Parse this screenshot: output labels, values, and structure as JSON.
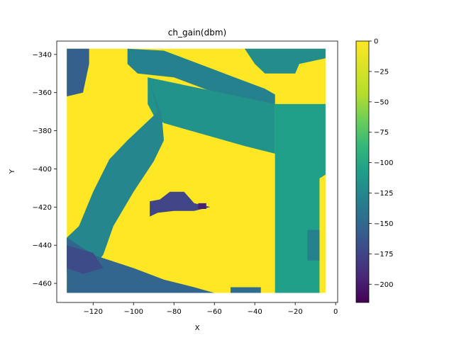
{
  "chart_data": {
    "type": "heatmap",
    "title": "ch_gain(dbm)",
    "xlabel": "X",
    "ylabel": "Y",
    "xlim": [
      -138,
      1
    ],
    "ylim": [
      -470,
      -333
    ],
    "x_ticks": [
      -120,
      -100,
      -80,
      -60,
      -40,
      -20,
      0
    ],
    "y_ticks": [
      -340,
      -360,
      -380,
      -400,
      -420,
      -440,
      -460
    ],
    "x_tick_labels": [
      "−120",
      "−100",
      "−80",
      "−60",
      "−40",
      "−20",
      "0"
    ],
    "y_tick_labels": [
      "−340",
      "−360",
      "−380",
      "−400",
      "−420",
      "−440",
      "−460"
    ],
    "colorbar": {
      "colormap": "viridis",
      "range": [
        -215,
        0
      ],
      "ticks": [
        0,
        -25,
        -50,
        -75,
        -100,
        -125,
        -150,
        -175,
        -200
      ],
      "tick_labels": [
        "0",
        "−25",
        "−50",
        "−75",
        "−100",
        "−125",
        "−150",
        "−175",
        "−200"
      ]
    },
    "grid": false,
    "data_extent": {
      "x": [
        -133,
        -5
      ],
      "y": [
        -465,
        -337
      ]
    },
    "regions": [
      {
        "name": "open area",
        "value": 0,
        "polygon": [
          [
            -133,
            -337
          ],
          [
            -5,
            -337
          ],
          [
            -5,
            -465
          ],
          [
            -133,
            -465
          ]
        ]
      },
      {
        "name": "upper-left corner block",
        "value": -150,
        "polygon": [
          [
            -133,
            -337
          ],
          [
            -122,
            -337
          ],
          [
            -122,
            -345
          ],
          [
            -125,
            -360
          ],
          [
            -133,
            -362
          ]
        ]
      },
      {
        "name": "top corridor left",
        "value": -120,
        "polygon": [
          [
            -103,
            -337
          ],
          [
            -85,
            -338
          ],
          [
            -75,
            -342
          ],
          [
            -60,
            -348
          ],
          [
            -50,
            -352
          ],
          [
            -35,
            -358
          ],
          [
            -30,
            -361
          ],
          [
            -30,
            -372
          ],
          [
            -40,
            -367
          ],
          [
            -60,
            -360
          ],
          [
            -80,
            -352
          ],
          [
            -98,
            -350
          ],
          [
            -103,
            -345
          ]
        ]
      },
      {
        "name": "top corridor right",
        "value": -110,
        "polygon": [
          [
            -45,
            -337
          ],
          [
            -5,
            -337
          ],
          [
            -5,
            -342
          ],
          [
            -18,
            -345
          ],
          [
            -20,
            -350
          ],
          [
            -35,
            -350
          ],
          [
            -40,
            -345
          ]
        ]
      },
      {
        "name": "diagonal wall",
        "value": -105,
        "polygon": [
          [
            -93,
            -352
          ],
          [
            -30,
            -366
          ],
          [
            -30,
            -392
          ],
          [
            -45,
            -388
          ],
          [
            -65,
            -382
          ],
          [
            -85,
            -376
          ],
          [
            -90,
            -372
          ],
          [
            -93,
            -366
          ]
        ]
      },
      {
        "name": "diagonal corridor",
        "value": -115,
        "polygon": [
          [
            -93,
            -352
          ],
          [
            -88,
            -370
          ],
          [
            -103,
            -385
          ],
          [
            -112,
            -395
          ],
          [
            -120,
            -412
          ],
          [
            -127,
            -430
          ],
          [
            -133,
            -436
          ],
          [
            -133,
            -455
          ],
          [
            -125,
            -458
          ],
          [
            -115,
            -445
          ],
          [
            -110,
            -430
          ],
          [
            -100,
            -412
          ],
          [
            -90,
            -396
          ],
          [
            -85,
            -385
          ],
          [
            -86,
            -372
          ]
        ]
      },
      {
        "name": "right column",
        "value": -95,
        "polygon": [
          [
            -30,
            -366
          ],
          [
            -5,
            -366
          ],
          [
            -5,
            -403
          ],
          [
            -8,
            -405
          ],
          [
            -8,
            -465
          ],
          [
            -30,
            -465
          ]
        ]
      },
      {
        "name": "right column dark strip",
        "value": -120,
        "polygon": [
          [
            -14,
            -432
          ],
          [
            -8,
            -432
          ],
          [
            -8,
            -448
          ],
          [
            -14,
            -448
          ]
        ]
      },
      {
        "name": "bottom left band",
        "value": -145,
        "polygon": [
          [
            -133,
            -436
          ],
          [
            -120,
            -445
          ],
          [
            -100,
            -452
          ],
          [
            -85,
            -458
          ],
          [
            -70,
            -462
          ],
          [
            -60,
            -465
          ],
          [
            -133,
            -465
          ]
        ]
      },
      {
        "name": "bottom left dark blob",
        "value": -165,
        "polygon": [
          [
            -133,
            -440
          ],
          [
            -120,
            -444
          ],
          [
            -115,
            -452
          ],
          [
            -125,
            -455
          ],
          [
            -133,
            -452
          ]
        ]
      },
      {
        "name": "bottom small strip",
        "value": -140,
        "polygon": [
          [
            -52,
            -462
          ],
          [
            -37,
            -462
          ],
          [
            -37,
            -465
          ],
          [
            -52,
            -465
          ]
        ]
      },
      {
        "name": "obstacle interior",
        "value": -170,
        "polygon": [
          [
            -92,
            -417
          ],
          [
            -87,
            -416
          ],
          [
            -82,
            -412
          ],
          [
            -75,
            -412
          ],
          [
            -70,
            -418
          ],
          [
            -62,
            -420
          ],
          [
            -70,
            -422
          ],
          [
            -80,
            -422
          ],
          [
            -88,
            -423
          ],
          [
            -92,
            -425
          ]
        ]
      },
      {
        "name": "obstacle dark edge",
        "value": -195,
        "polygon": [
          [
            -68,
            -418
          ],
          [
            -64,
            -418
          ],
          [
            -64,
            -421
          ],
          [
            -68,
            -421
          ]
        ]
      }
    ]
  }
}
